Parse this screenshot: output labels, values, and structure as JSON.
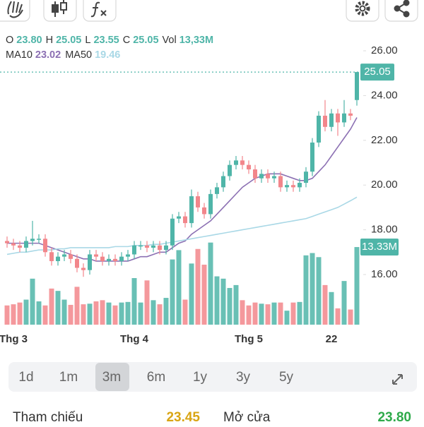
{
  "chart_data": {
    "type": "candlestick",
    "categories": [
      null,
      "Thg 3",
      null,
      null,
      null,
      null,
      null,
      null,
      null,
      null,
      null,
      null,
      null,
      null,
      null,
      null,
      null,
      null,
      null,
      null,
      "Thg 4",
      null,
      null,
      null,
      null,
      null,
      null,
      null,
      null,
      null,
      null,
      null,
      null,
      null,
      null,
      null,
      null,
      null,
      "Thg 5",
      null,
      null,
      null,
      null,
      null,
      null,
      null,
      null,
      null,
      null,
      null,
      null,
      "22",
      null,
      null,
      null,
      null
    ],
    "open": [
      17.5,
      17.4,
      17.3,
      17.2,
      17.5,
      17.6,
      17.6,
      17.0,
      16.6,
      16.8,
      16.9,
      16.7,
      16.3,
      16.2,
      16.9,
      16.8,
      16.6,
      16.7,
      16.6,
      16.8,
      16.9,
      17.3,
      17.3,
      17.2,
      17.3,
      17.1,
      17.3,
      18.5,
      18.6,
      18.3,
      19.5,
      19.0,
      18.7,
      19.6,
      19.9,
      20.4,
      20.9,
      21.1,
      20.9,
      20.7,
      20.3,
      20.5,
      20.3,
      20.4,
      19.9,
      20.0,
      19.9,
      20.1,
      20.6,
      21.9,
      23.1,
      22.6,
      23.2,
      22.8,
      23.2,
      23.8
    ],
    "high": [
      17.7,
      17.6,
      17.5,
      17.7,
      18.4,
      17.8,
      17.8,
      17.2,
      17.0,
      17.1,
      17.1,
      16.9,
      16.5,
      17.1,
      17.1,
      17.0,
      16.9,
      16.9,
      17.0,
      17.1,
      17.5,
      17.5,
      17.5,
      17.5,
      17.5,
      17.5,
      18.7,
      18.8,
      18.8,
      19.8,
      19.7,
      19.2,
      19.8,
      20.1,
      20.6,
      21.1,
      21.3,
      21.3,
      21.1,
      20.9,
      20.7,
      20.7,
      20.6,
      20.6,
      20.2,
      20.2,
      20.3,
      20.8,
      22.1,
      23.3,
      23.8,
      23.4,
      23.4,
      23.8,
      23.4,
      25.05
    ],
    "low": [
      17.2,
      17.1,
      17.0,
      17.0,
      17.3,
      17.4,
      16.8,
      16.4,
      16.4,
      16.6,
      16.5,
      16.1,
      15.9,
      16.0,
      16.6,
      16.4,
      16.4,
      16.4,
      16.4,
      16.6,
      16.7,
      17.1,
      17.0,
      17.0,
      16.9,
      16.9,
      17.1,
      18.3,
      18.1,
      18.1,
      18.8,
      18.5,
      18.5,
      19.4,
      19.7,
      20.2,
      20.7,
      20.7,
      20.5,
      20.1,
      20.1,
      20.1,
      20.1,
      19.7,
      19.7,
      19.7,
      19.7,
      19.9,
      20.4,
      21.7,
      22.4,
      22.4,
      22.2,
      22.6,
      22.9,
      23.55
    ],
    "close": [
      17.4,
      17.3,
      17.2,
      17.5,
      17.6,
      17.6,
      17.0,
      16.6,
      16.8,
      16.9,
      16.7,
      16.3,
      16.2,
      16.9,
      16.8,
      16.6,
      16.7,
      16.6,
      16.8,
      16.9,
      17.3,
      17.3,
      17.2,
      17.3,
      17.1,
      17.3,
      18.5,
      18.6,
      18.3,
      19.5,
      19.0,
      18.7,
      19.6,
      19.9,
      20.4,
      20.9,
      21.1,
      20.9,
      20.7,
      20.3,
      20.5,
      20.3,
      20.4,
      19.9,
      20.0,
      19.9,
      20.1,
      20.6,
      21.9,
      23.1,
      22.6,
      23.2,
      22.8,
      23.2,
      23.1,
      25.05
    ],
    "volume": [
      3.3,
      3.5,
      3.8,
      4.3,
      7.9,
      4.0,
      3.3,
      6.2,
      5.8,
      4.3,
      3.4,
      6.5,
      3.5,
      3.6,
      4.0,
      4.2,
      3.8,
      3.3,
      3.8,
      3.9,
      8.0,
      3.8,
      7.6,
      4.2,
      3.5,
      4.6,
      11.2,
      12.8,
      4.3,
      10.5,
      13.0,
      10.3,
      14.1,
      8.3,
      7.9,
      6.3,
      6.8,
      4.2,
      3.3,
      3.8,
      3.6,
      3.5,
      3.8,
      3.8,
      2.4,
      3.8,
      3.9,
      11.9,
      12.3,
      11.6,
      6.8,
      5.6,
      2.8,
      7.5,
      2.6,
      13.33
    ],
    "up_color": "#4fb5a8",
    "down_color": "#f2868b",
    "series": [
      {
        "name": "MA10",
        "color": "#8c70b3",
        "legend_value": "23.02",
        "values": [
          17.4,
          17.4,
          17.4,
          17.4,
          17.4,
          17.4,
          17.3,
          17.2,
          17.1,
          17.0,
          16.9,
          16.8,
          16.7,
          16.7,
          16.6,
          16.6,
          16.6,
          16.6,
          16.6,
          16.6,
          16.7,
          16.8,
          16.8,
          16.9,
          17.0,
          17.0,
          17.2,
          17.4,
          17.5,
          17.8,
          18.0,
          18.2,
          18.4,
          18.7,
          19.0,
          19.3,
          19.6,
          19.9,
          20.1,
          20.3,
          20.4,
          20.5,
          20.5,
          20.5,
          20.4,
          20.3,
          20.2,
          20.2,
          20.3,
          20.6,
          20.9,
          21.3,
          21.7,
          22.1,
          22.5,
          23.02
        ]
      },
      {
        "name": "MA50",
        "color": "#a9d8e6",
        "legend_value": "19.46",
        "values": [
          16.9,
          16.95,
          17.0,
          17.0,
          17.05,
          17.1,
          17.1,
          17.1,
          17.15,
          17.15,
          17.2,
          17.2,
          17.2,
          17.2,
          17.2,
          17.2,
          17.2,
          17.25,
          17.25,
          17.25,
          17.3,
          17.3,
          17.3,
          17.35,
          17.35,
          17.4,
          17.45,
          17.5,
          17.55,
          17.6,
          17.65,
          17.7,
          17.75,
          17.8,
          17.85,
          17.9,
          17.95,
          18.0,
          18.05,
          18.1,
          18.15,
          18.2,
          18.25,
          18.3,
          18.35,
          18.4,
          18.45,
          18.5,
          18.6,
          18.7,
          18.8,
          18.9,
          19.0,
          19.15,
          19.3,
          19.46
        ]
      }
    ],
    "ohlc_legend": [
      {
        "name": "O",
        "value": "23.80"
      },
      {
        "name": "H",
        "value": "25.05"
      },
      {
        "name": "L",
        "value": "23.55"
      },
      {
        "name": "C",
        "value": "25.05"
      },
      {
        "name": "Vol",
        "value": "13,33M"
      }
    ],
    "ylim": [
      14.5,
      27
    ],
    "yticks": [
      {
        "value": 26,
        "label": "26.00"
      },
      {
        "value": 24,
        "label": "24.00"
      },
      {
        "value": 22,
        "label": "22.00"
      },
      {
        "value": 20,
        "label": "20.00"
      },
      {
        "value": 18,
        "label": "18.00"
      },
      {
        "value": 16,
        "label": "16.00"
      }
    ],
    "y2lim": [
      0,
      15
    ],
    "last_price_label": "25.05",
    "last_volume_label": "13.33M"
  },
  "ranges": [
    "1d",
    "1m",
    "3m",
    "6m",
    "1y",
    "3y",
    "5y"
  ],
  "selected_range": 2,
  "info": [
    {
      "label": "Tham chiếu",
      "value": "23.45",
      "color": "#d9a514"
    },
    {
      "label": "Mở cửa",
      "value": "23.80",
      "color": "#2eaa4a"
    }
  ]
}
